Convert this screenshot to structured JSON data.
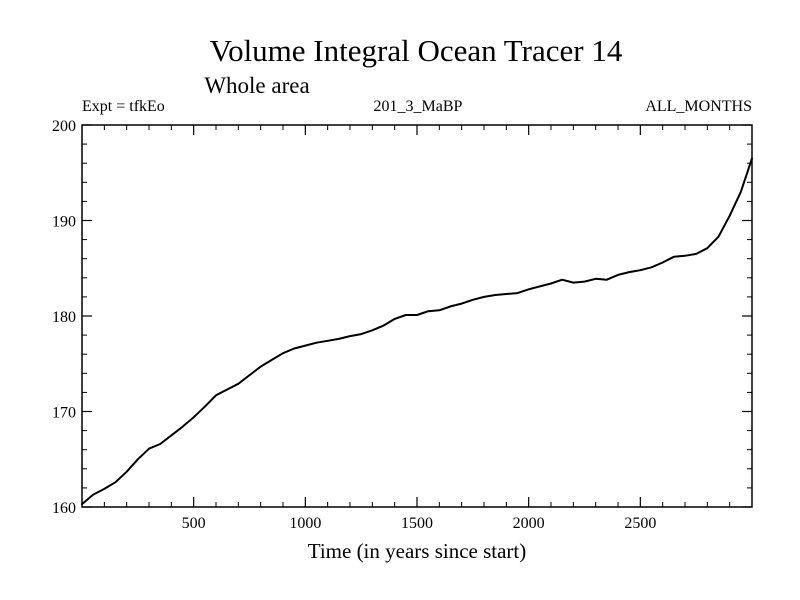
{
  "chart_data": {
    "type": "line",
    "title": "Volume Integral Ocean Tracer 14",
    "subtitle": "Whole area",
    "experiment": "Expt = tfkEo",
    "run_label": "201_3_MaBP",
    "months_label": "ALL_MONTHS",
    "xlabel": "Time (in years since start)",
    "ylabel": "",
    "xlim": [
      0,
      3000
    ],
    "ylim": [
      160,
      200
    ],
    "x_ticks": [
      500,
      1000,
      1500,
      2000,
      2500
    ],
    "y_ticks": [
      160,
      170,
      180,
      190,
      200
    ],
    "grid": false,
    "series": [
      {
        "color": "#000000",
        "x": [
          0,
          50,
          100,
          150,
          200,
          250,
          300,
          350,
          400,
          450,
          500,
          550,
          600,
          650,
          700,
          750,
          800,
          850,
          900,
          950,
          1000,
          1050,
          1100,
          1150,
          1200,
          1250,
          1300,
          1350,
          1400,
          1450,
          1500,
          1550,
          1600,
          1650,
          1700,
          1750,
          1800,
          1850,
          1900,
          1950,
          2000,
          2050,
          2100,
          2150,
          2200,
          2250,
          2300,
          2350,
          2400,
          2450,
          2500,
          2550,
          2600,
          2650,
          2700,
          2750,
          2800,
          2850,
          2900,
          2950,
          3000
        ],
        "y": [
          160.3,
          161.3,
          161.9,
          162.6,
          163.7,
          165.0,
          166.1,
          166.6,
          167.5,
          168.4,
          169.4,
          170.5,
          171.7,
          172.3,
          172.9,
          173.8,
          174.7,
          175.4,
          176.1,
          176.6,
          176.9,
          177.2,
          177.4,
          177.6,
          177.9,
          178.1,
          178.5,
          179.0,
          179.7,
          180.1,
          180.1,
          180.5,
          180.6,
          181.0,
          181.3,
          181.7,
          182.0,
          182.2,
          182.3,
          182.4,
          182.8,
          183.1,
          183.4,
          183.8,
          183.5,
          183.6,
          183.9,
          183.8,
          184.3,
          184.6,
          184.8,
          185.1,
          185.6,
          186.2,
          186.3,
          186.5,
          187.1,
          188.3,
          190.5,
          193.0,
          196.5
        ]
      }
    ]
  }
}
